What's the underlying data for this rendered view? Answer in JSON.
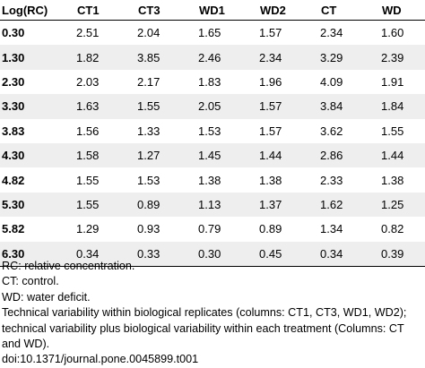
{
  "table": {
    "headers": [
      "Log(RC)",
      "CT1",
      "CT3",
      "WD1",
      "WD2",
      "CT",
      "WD"
    ],
    "rows": [
      {
        "label": "0.30",
        "values": [
          "2.51",
          "2.04",
          "1.65",
          "1.57",
          "2.34",
          "1.60"
        ]
      },
      {
        "label": "1.30",
        "values": [
          "1.82",
          "3.85",
          "2.46",
          "2.34",
          "3.29",
          "2.39"
        ]
      },
      {
        "label": "2.30",
        "values": [
          "2.03",
          "2.17",
          "1.83",
          "1.96",
          "4.09",
          "1.91"
        ]
      },
      {
        "label": "3.30",
        "values": [
          "1.63",
          "1.55",
          "2.05",
          "1.57",
          "3.84",
          "1.84"
        ]
      },
      {
        "label": "3.83",
        "values": [
          "1.56",
          "1.33",
          "1.53",
          "1.57",
          "3.62",
          "1.55"
        ]
      },
      {
        "label": "4.30",
        "values": [
          "1.58",
          "1.27",
          "1.45",
          "1.44",
          "2.86",
          "1.44"
        ]
      },
      {
        "label": "4.82",
        "values": [
          "1.55",
          "1.53",
          "1.38",
          "1.38",
          "2.33",
          "1.38"
        ]
      },
      {
        "label": "5.30",
        "values": [
          "1.55",
          "0.89",
          "1.13",
          "1.37",
          "1.62",
          "1.25"
        ]
      },
      {
        "label": "5.82",
        "values": [
          "1.29",
          "0.93",
          "0.79",
          "0.89",
          "1.34",
          "0.82"
        ]
      },
      {
        "label": "6.30",
        "values": [
          "0.34",
          "0.33",
          "0.30",
          "0.45",
          "0.34",
          "0.39"
        ]
      }
    ]
  },
  "notes": {
    "rc": "RC: relative concentration.",
    "ct": "CT: control.",
    "wd": "WD: water deficit.",
    "variability": "Technical variability within biological replicates (columns: CT1, CT3, WD1, WD2); technical variability plus biological variability within each treatment (Columns: CT and WD).",
    "doi": "doi:10.1371/journal.pone.0045899.t001"
  }
}
